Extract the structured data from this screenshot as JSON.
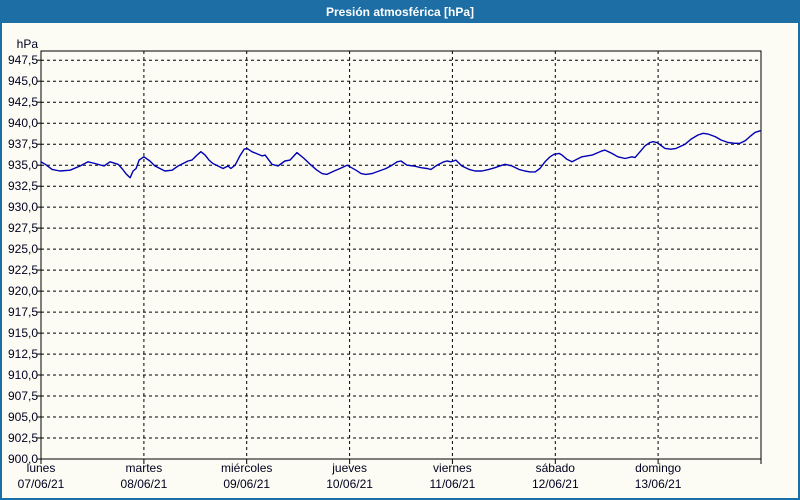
{
  "window": {
    "title": "Presión atmosférica [hPa]"
  },
  "colors": {
    "titlebar": "#1C6EA4",
    "window_border": "#1C6EA4",
    "panel_background": "#FCFCF4",
    "grid": "#000000",
    "label_text": "#000020",
    "series_line": "#0000B3"
  },
  "chart_data": {
    "type": "line",
    "title": "Presión atmosférica [hPa]",
    "y_unit_label": "hPa",
    "ylabel": "hPa",
    "xlabel": "",
    "ylim": [
      900,
      948.6
    ],
    "grid": "dashed",
    "legend_position": "none",
    "yticks": [
      {
        "value": 947.5,
        "label": "947,5"
      },
      {
        "value": 945.0,
        "label": "945,0"
      },
      {
        "value": 942.5,
        "label": "942,5"
      },
      {
        "value": 940.0,
        "label": "940,0"
      },
      {
        "value": 937.5,
        "label": "937,5"
      },
      {
        "value": 935.0,
        "label": "935,0"
      },
      {
        "value": 932.5,
        "label": "932,5"
      },
      {
        "value": 930.0,
        "label": "930,0"
      },
      {
        "value": 927.5,
        "label": "927,5"
      },
      {
        "value": 925.0,
        "label": "925,0"
      },
      {
        "value": 922.5,
        "label": "922,5"
      },
      {
        "value": 920.0,
        "label": "920,0"
      },
      {
        "value": 917.5,
        "label": "917,5"
      },
      {
        "value": 915.0,
        "label": "915,0"
      },
      {
        "value": 912.5,
        "label": "912,5"
      },
      {
        "value": 910.0,
        "label": "910,0"
      },
      {
        "value": 907.5,
        "label": "907,5"
      },
      {
        "value": 905.0,
        "label": "905,0"
      },
      {
        "value": 902.5,
        "label": "902,5"
      },
      {
        "value": 900.0,
        "label": "900,0"
      }
    ],
    "x_total_hours": 168,
    "days": [
      {
        "name": "lunes",
        "date": "07/06/21"
      },
      {
        "name": "martes",
        "date": "08/06/21"
      },
      {
        "name": "miércoles",
        "date": "09/06/21"
      },
      {
        "name": "jueves",
        "date": "10/06/21"
      },
      {
        "name": "viernes",
        "date": "11/06/21"
      },
      {
        "name": "sábado",
        "date": "12/06/21"
      },
      {
        "name": "domingo",
        "date": "13/06/21"
      }
    ],
    "series": [
      {
        "name": "Presión atmosférica",
        "color": "#0000B3",
        "points": [
          [
            0,
            935.4
          ],
          [
            1,
            935.1
          ],
          [
            2.6,
            934.5
          ],
          [
            4.4,
            934.3
          ],
          [
            6.8,
            934.4
          ],
          [
            9.1,
            934.9
          ],
          [
            11,
            935.4
          ],
          [
            12.6,
            935.2
          ],
          [
            14.7,
            934.9
          ],
          [
            16.1,
            935.4
          ],
          [
            18,
            935.1
          ],
          [
            18.9,
            934.6
          ],
          [
            19.8,
            934
          ],
          [
            20.8,
            933.5
          ],
          [
            21.5,
            934.3
          ],
          [
            22.2,
            934.6
          ],
          [
            22.9,
            935.6
          ],
          [
            24,
            936
          ],
          [
            25.4,
            935.5
          ],
          [
            26.6,
            934.9
          ],
          [
            28.9,
            934.3
          ],
          [
            30.6,
            934.4
          ],
          [
            32,
            934.9
          ],
          [
            34.3,
            935.5
          ],
          [
            35.2,
            935.6
          ],
          [
            36.4,
            936.2
          ],
          [
            37.3,
            936.6
          ],
          [
            38.3,
            936.2
          ],
          [
            39.2,
            935.6
          ],
          [
            40.1,
            935.2
          ],
          [
            41.3,
            934.9
          ],
          [
            42.5,
            934.6
          ],
          [
            43.6,
            934.9
          ],
          [
            44.3,
            934.6
          ],
          [
            45.3,
            935
          ],
          [
            46.4,
            936.1
          ],
          [
            47.4,
            936.9
          ],
          [
            48.1,
            937
          ],
          [
            49.2,
            936.6
          ],
          [
            50.2,
            936.4
          ],
          [
            51.6,
            936.1
          ],
          [
            52.3,
            936.2
          ],
          [
            53.9,
            935.1
          ],
          [
            55.3,
            934.9
          ],
          [
            56.9,
            935.5
          ],
          [
            58.1,
            935.6
          ],
          [
            59.7,
            936.5
          ],
          [
            61.4,
            935.8
          ],
          [
            62.8,
            935.1
          ],
          [
            64.4,
            934.4
          ],
          [
            65.6,
            934
          ],
          [
            66.7,
            933.9
          ],
          [
            68.4,
            934.3
          ],
          [
            69.8,
            934.6
          ],
          [
            71.4,
            935
          ],
          [
            73.5,
            934.4
          ],
          [
            74.7,
            934
          ],
          [
            75.8,
            933.9
          ],
          [
            77.2,
            934
          ],
          [
            78.9,
            934.3
          ],
          [
            80.5,
            934.6
          ],
          [
            81.9,
            935
          ],
          [
            83.1,
            935.4
          ],
          [
            84,
            935.5
          ],
          [
            85.4,
            935
          ],
          [
            87,
            934.9
          ],
          [
            88.7,
            934.7
          ],
          [
            90.1,
            934.6
          ],
          [
            91,
            934.5
          ],
          [
            92.4,
            935
          ],
          [
            94,
            935.4
          ],
          [
            94.7,
            935.5
          ],
          [
            95.7,
            935.4
          ],
          [
            96.8,
            935.6
          ],
          [
            98.2,
            934.9
          ],
          [
            99.9,
            934.5
          ],
          [
            101.3,
            934.3
          ],
          [
            102.9,
            934.3
          ],
          [
            104.5,
            934.5
          ],
          [
            105.9,
            934.7
          ],
          [
            107.6,
            935
          ],
          [
            108.3,
            935.1
          ],
          [
            109.9,
            934.9
          ],
          [
            111.5,
            934.5
          ],
          [
            112.9,
            934.3
          ],
          [
            114.1,
            934.2
          ],
          [
            115.3,
            934.2
          ],
          [
            116.4,
            934.6
          ],
          [
            117.6,
            935.4
          ],
          [
            118.8,
            936
          ],
          [
            119.7,
            936.3
          ],
          [
            120.9,
            936.4
          ],
          [
            121.6,
            936.2
          ],
          [
            122.7,
            935.7
          ],
          [
            123.9,
            935.4
          ],
          [
            126.2,
            936
          ],
          [
            128.6,
            936.2
          ],
          [
            130.9,
            936.7
          ],
          [
            131.6,
            936.8
          ],
          [
            133.2,
            936.4
          ],
          [
            134.6,
            936
          ],
          [
            136.3,
            935.8
          ],
          [
            137.9,
            936
          ],
          [
            138.6,
            935.9
          ],
          [
            139.8,
            936.6
          ],
          [
            140.9,
            937.3
          ],
          [
            142.1,
            937.7
          ],
          [
            142.8,
            937.8
          ],
          [
            143.7,
            937.7
          ],
          [
            145.6,
            937
          ],
          [
            147,
            936.9
          ],
          [
            148.2,
            937
          ],
          [
            150.3,
            937.5
          ],
          [
            151.7,
            938.1
          ],
          [
            153.3,
            938.6
          ],
          [
            154.5,
            938.8
          ],
          [
            155.7,
            938.7
          ],
          [
            157.3,
            938.4
          ],
          [
            158.7,
            938
          ],
          [
            160.3,
            937.7
          ],
          [
            161.9,
            937.6
          ],
          [
            163.1,
            937.6
          ],
          [
            164.3,
            937.9
          ],
          [
            165.4,
            938.4
          ],
          [
            166.6,
            938.9
          ],
          [
            167.8,
            939.1
          ]
        ]
      }
    ]
  }
}
